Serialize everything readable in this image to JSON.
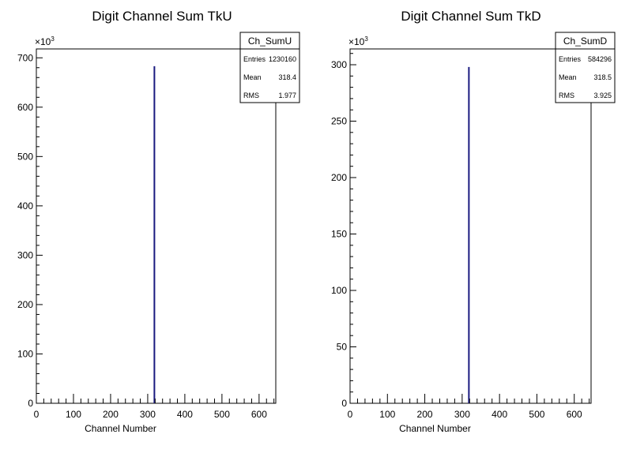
{
  "chart_data": [
    {
      "type": "bar",
      "title": "Digit Channel Sum TkU",
      "xlabel": "Channel Number",
      "ylabel": "",
      "y_multiplier_label": "×10",
      "y_multiplier_exp": "3",
      "xlim": [
        0,
        645
      ],
      "ylim": [
        0,
        718
      ],
      "xticks": [
        "0",
        "100",
        "200",
        "300",
        "400",
        "500",
        "600"
      ],
      "yticks": [
        "0",
        "100",
        "200",
        "300",
        "400",
        "500",
        "600",
        "700"
      ],
      "x_tick_values": [
        0,
        100,
        200,
        300,
        400,
        500,
        600
      ],
      "y_tick_values": [
        0,
        100,
        200,
        300,
        400,
        500,
        600,
        700
      ],
      "x_minor_step": 20,
      "y_minor_step": 20,
      "series": [
        {
          "x": [
            318
          ],
          "values": [
            683
          ]
        }
      ],
      "color": "#1a1a80",
      "stats": {
        "name": "Ch_SumU",
        "rows": [
          {
            "label": "Entries",
            "value": "1230160"
          },
          {
            "label": "Mean",
            "value": "318.4"
          },
          {
            "label": "RMS",
            "value": "1.977"
          }
        ]
      }
    },
    {
      "type": "bar",
      "title": "Digit Channel Sum TkD",
      "xlabel": "Channel Number",
      "ylabel": "",
      "y_multiplier_label": "×10",
      "y_multiplier_exp": "3",
      "xlim": [
        0,
        645
      ],
      "ylim": [
        0,
        314
      ],
      "xticks": [
        "0",
        "100",
        "200",
        "300",
        "400",
        "500",
        "600"
      ],
      "yticks": [
        "0",
        "50",
        "100",
        "150",
        "200",
        "250",
        "300"
      ],
      "x_tick_values": [
        0,
        100,
        200,
        300,
        400,
        500,
        600
      ],
      "y_tick_values": [
        0,
        50,
        100,
        150,
        200,
        250,
        300
      ],
      "x_minor_step": 20,
      "y_minor_step": 10,
      "series": [
        {
          "x": [
            318
          ],
          "values": [
            298
          ]
        }
      ],
      "color": "#1a1a80",
      "stats": {
        "name": "Ch_SumD",
        "rows": [
          {
            "label": "Entries",
            "value": "584296"
          },
          {
            "label": "Mean",
            "value": "318.5"
          },
          {
            "label": "RMS",
            "value": "3.925"
          }
        ]
      }
    }
  ]
}
